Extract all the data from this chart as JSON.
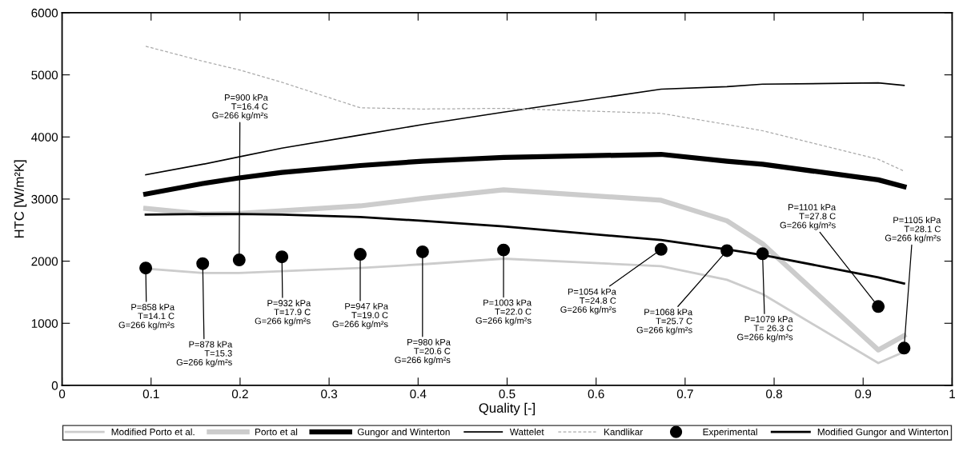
{
  "chart_data": {
    "type": "line",
    "xlabel": "Quality [-]",
    "ylabel": "HTC [W/m²K]",
    "x": [
      0.094,
      0.158,
      0.199,
      0.247,
      0.335,
      0.405,
      0.496,
      0.673,
      0.747,
      0.787,
      0.917,
      0.946
    ],
    "xlim": [
      0,
      1
    ],
    "xticks": [
      0,
      0.1,
      0.2,
      0.3,
      0.4,
      0.5,
      0.6,
      0.7,
      0.8,
      0.9,
      1
    ],
    "ylim": [
      0,
      6000
    ],
    "yticks": [
      0,
      1000,
      2000,
      3000,
      4000,
      5000,
      6000
    ],
    "grid": false,
    "legend": "bottom",
    "series": [
      {
        "name": "Modified Porto et al.",
        "color": "#cccccc",
        "line_style": "solid",
        "values": [
          1880,
          1810,
          1810,
          1840,
          1890,
          1950,
          2040,
          1920,
          1700,
          1470,
          360,
          540
        ]
      },
      {
        "name": "Porto et al",
        "color": "#cccccc",
        "line_style": "solid",
        "values": [
          2850,
          2760,
          2770,
          2810,
          2890,
          3010,
          3150,
          2980,
          2650,
          2280,
          570,
          800
        ]
      },
      {
        "name": "Gungor and Winterton",
        "color": "#000000",
        "line_style": "solid",
        "values": [
          3080,
          3250,
          3340,
          3430,
          3540,
          3610,
          3670,
          3720,
          3610,
          3560,
          3310,
          3200
        ]
      },
      {
        "name": "Wattelet",
        "color": "#000000",
        "line_style": "solid",
        "values": [
          3390,
          3560,
          3680,
          3820,
          4030,
          4200,
          4400,
          4770,
          4810,
          4850,
          4870,
          4830
        ]
      },
      {
        "name": "Kandlikar",
        "color": "#aaaaaa",
        "line_style": "dashed",
        "values": [
          5460,
          5220,
          5080,
          4880,
          4470,
          4450,
          4460,
          4380,
          4200,
          4100,
          3640,
          3450
        ]
      },
      {
        "name": "Experimental",
        "color": "#000000",
        "type": "scatter",
        "marker": "circle",
        "values": [
          1890,
          1960,
          2020,
          2070,
          2110,
          2150,
          2180,
          2190,
          2170,
          2120,
          1270,
          600
        ]
      },
      {
        "name": "Modified Gungor and Winterton",
        "color": "#000000",
        "line_style": "solid",
        "values": [
          2750,
          2760,
          2760,
          2750,
          2710,
          2650,
          2560,
          2340,
          2190,
          2100,
          1740,
          1640
        ]
      }
    ],
    "annotations": [
      {
        "text": "P=858 kPa\nT=14.1 C\nG=266 kg/m²s",
        "x": 0.094,
        "y": 1890
      },
      {
        "text": "P=878 kPa\nT=15.3\nG=266 kg/m²s",
        "x": 0.158,
        "y": 1960
      },
      {
        "text": "P=900 kPa\nT=16.4 C\nG=266 kg/m²s",
        "x": 0.199,
        "y": 2020
      },
      {
        "text": "P=932 kPa\nT=17.9 C\nG=266 kg/m²s",
        "x": 0.247,
        "y": 2070
      },
      {
        "text": "P=947 kPa\nT=19.0 C\nG=266 kg/m²s",
        "x": 0.335,
        "y": 2110
      },
      {
        "text": "P=980 kPa\nT=20.6 C\nG=266 kg/m²s",
        "x": 0.405,
        "y": 2150
      },
      {
        "text": "P=1003 kPa\nT=22.0 C\nG=266 kg/m²s",
        "x": 0.496,
        "y": 2180
      },
      {
        "text": "P=1054 kPa\nT=24.8 C\nG=266 kg/m²s",
        "x": 0.673,
        "y": 2190
      },
      {
        "text": "P=1068 kPa\nT=25.7 C\nG=266 kg/m²s",
        "x": 0.747,
        "y": 2170
      },
      {
        "text": "P=1079 kPa\nT= 26.3 C\nG=266 kg/m²s",
        "x": 0.787,
        "y": 2120
      },
      {
        "text": "P=1101 kPa\nT=27.8 C\nG=266 kg/m²s",
        "x": 0.917,
        "y": 1270
      },
      {
        "text": "P=1105 kPa\nT=28.1 C\nG=266 kg/m²s",
        "x": 0.946,
        "y": 600
      }
    ]
  }
}
